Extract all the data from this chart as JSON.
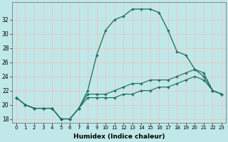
{
  "xlabel": "Humidex (Indice chaleur)",
  "background_color": "#c0e8e8",
  "grid_color": "#e8c8c8",
  "line_color": "#1a6b5a",
  "xlim": [
    -0.5,
    23.5
  ],
  "ylim": [
    17.5,
    34.5
  ],
  "yticks": [
    18,
    20,
    22,
    24,
    26,
    28,
    30,
    32
  ],
  "xticks": [
    0,
    1,
    2,
    3,
    4,
    5,
    6,
    7,
    8,
    9,
    10,
    11,
    12,
    13,
    14,
    15,
    16,
    17,
    18,
    19,
    20,
    21,
    22,
    23
  ],
  "line1_x": [
    0,
    1,
    2,
    3,
    4,
    5,
    6,
    7,
    8,
    9,
    10,
    11,
    12,
    13,
    14,
    15,
    16,
    17,
    18,
    19,
    20,
    21,
    22,
    23
  ],
  "line1_y": [
    21.0,
    20.0,
    19.5,
    19.5,
    19.5,
    18.0,
    18.0,
    19.5,
    22.0,
    27.0,
    30.5,
    32.0,
    32.5,
    33.5,
    33.5,
    33.5,
    33.0,
    30.5,
    27.5,
    27.0,
    25.0,
    24.0,
    22.0,
    21.5
  ],
  "line2_x": [
    0,
    1,
    2,
    3,
    4,
    5,
    6,
    7,
    8,
    9,
    10,
    11,
    12,
    13,
    14,
    15,
    16,
    17,
    18,
    19,
    20,
    21,
    22,
    23
  ],
  "line2_y": [
    21.0,
    20.0,
    19.5,
    19.5,
    19.5,
    18.0,
    18.0,
    19.5,
    21.5,
    21.5,
    21.5,
    22.0,
    22.5,
    23.0,
    23.0,
    23.5,
    23.5,
    23.5,
    24.0,
    24.5,
    25.0,
    24.5,
    22.0,
    21.5
  ],
  "line3_x": [
    0,
    1,
    2,
    3,
    4,
    5,
    6,
    7,
    8,
    9,
    10,
    11,
    12,
    13,
    14,
    15,
    16,
    17,
    18,
    19,
    20,
    21,
    22,
    23
  ],
  "line3_y": [
    21.0,
    20.0,
    19.5,
    19.5,
    19.5,
    18.0,
    18.0,
    19.5,
    21.0,
    21.0,
    21.0,
    21.0,
    21.5,
    21.5,
    22.0,
    22.0,
    22.5,
    22.5,
    23.0,
    23.5,
    24.0,
    23.5,
    22.0,
    21.5
  ]
}
